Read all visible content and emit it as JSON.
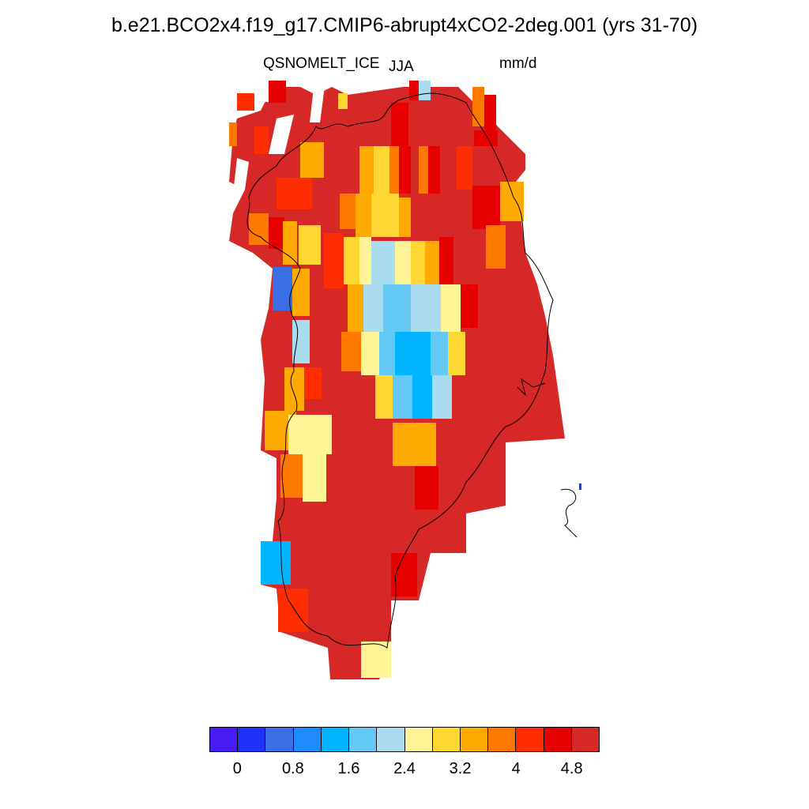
{
  "title": "b.e21.BCO2x4.f19_g17.CMIP6-abrupt4xCO2-2deg.001 (yrs 31-70)",
  "variable": "QSNOMELT_ICE",
  "season": "JJA",
  "units": "mm/d",
  "colorbar": {
    "colors": [
      "#4a1cf5",
      "#1e32fa",
      "#3c6ee6",
      "#1e8cff",
      "#00b4ff",
      "#64c8f5",
      "#aadcf0",
      "#fff596",
      "#ffd732",
      "#ffaa00",
      "#ff7800",
      "#ff2d00",
      "#e60000",
      "#d72828"
    ],
    "tick_labels": [
      "0",
      "0.8",
      "1.6",
      "2.4",
      "3.2",
      "4",
      "4.8"
    ]
  }
}
